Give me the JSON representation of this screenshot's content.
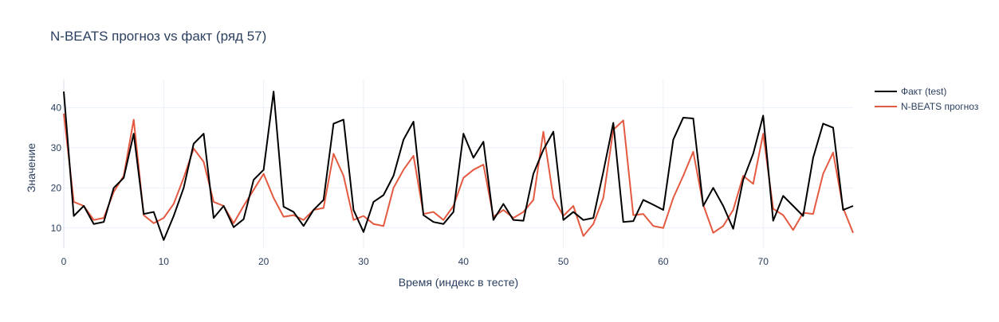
{
  "chart_data": {
    "type": "line",
    "title": "N-BEATS прогноз vs факт (ряд 57)",
    "xlabel": "Время (индекс в тесте)",
    "ylabel": "Значение",
    "xlim": [
      0,
      79
    ],
    "ylim": [
      5,
      47
    ],
    "x_ticks": [
      0,
      10,
      20,
      30,
      40,
      50,
      60,
      70
    ],
    "y_ticks": [
      10,
      20,
      30,
      40
    ],
    "grid": true,
    "legend_position": "top-right",
    "series": [
      {
        "name": "Факт (test)",
        "color": "#000000",
        "values": [
          44,
          13,
          15.5,
          11,
          11.5,
          20,
          22.5,
          33.5,
          13.5,
          14,
          7,
          13,
          20,
          31,
          33.5,
          12.5,
          15.5,
          10.2,
          12.2,
          22,
          24.5,
          44,
          15.3,
          14,
          10.5,
          14.5,
          17,
          36,
          37,
          14.5,
          9,
          16.5,
          18.2,
          23,
          32,
          36.5,
          13.2,
          11.5,
          11,
          14,
          33.5,
          27.5,
          31.5,
          12,
          16,
          12,
          11.8,
          23.5,
          29.5,
          34,
          12,
          14,
          12,
          12.5,
          24,
          36.2,
          11.5,
          11.7,
          17,
          15.8,
          14.5,
          32,
          37.5,
          37.3,
          15.5,
          20,
          15.5,
          9.8,
          22,
          28.5,
          38,
          11.8,
          18,
          15.5,
          13,
          27.5,
          36,
          35,
          14.5,
          15.5
        ]
      },
      {
        "name": "N-BEATS прогноз",
        "color": "#e45a41",
        "values": [
          38.5,
          16.5,
          15.5,
          12,
          12.5,
          19,
          23,
          37,
          13.2,
          11.2,
          12.5,
          16,
          22.5,
          29.8,
          26.5,
          16.5,
          15.5,
          11.2,
          15.5,
          19.5,
          23.5,
          17.5,
          12.8,
          13.2,
          12,
          14.5,
          15,
          28.5,
          23,
          12,
          13,
          11,
          10.5,
          20,
          24.5,
          28,
          13.5,
          14,
          12,
          15.5,
          22.5,
          24.5,
          25.8,
          12.8,
          14.5,
          12.5,
          14,
          17,
          34,
          17.5,
          13,
          15.5,
          8,
          11,
          17.5,
          34.5,
          36.8,
          13.2,
          13.5,
          10.5,
          10,
          17.5,
          23,
          29,
          15.8,
          8.8,
          10.5,
          14.5,
          23,
          21,
          33.5,
          14.8,
          13.2,
          9.5,
          13.8,
          13.5,
          23.5,
          28.8,
          15,
          8.8
        ]
      }
    ]
  }
}
